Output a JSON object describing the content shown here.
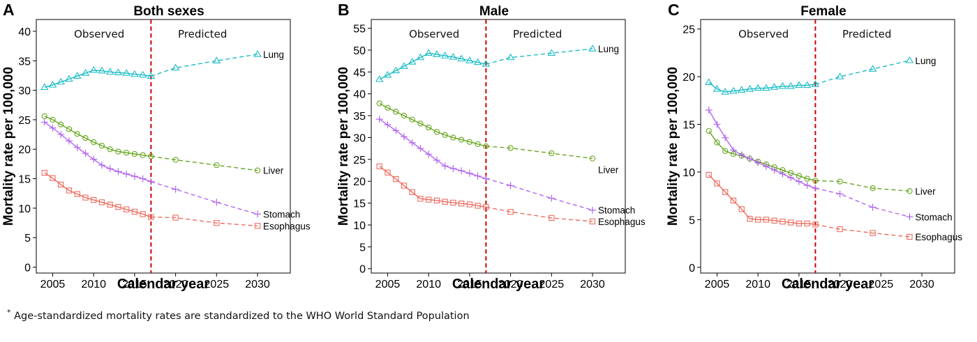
{
  "footnote": {
    "mark": "*",
    "text": " Age-standardized mortality rates are standardized to the WHO World Standard Population"
  },
  "colors": {
    "lung": "#1ABCC6",
    "liver": "#66A61E",
    "stomach": "#B366F2",
    "esophagus": "#EE6B5E",
    "divider": "#CC0000",
    "axis": "#000000"
  },
  "chart_data": [
    {
      "type": "line",
      "panel_letter": "A",
      "title": "Both sexes",
      "xlabel": "Calendar year",
      "ylabel": "Mortality rate per 100,000",
      "xlim": [
        2003,
        2034
      ],
      "ylim": [
        -1,
        42
      ],
      "xticks": [
        2005,
        2010,
        2015,
        2020,
        2025,
        2030
      ],
      "yticks": [
        0,
        5,
        10,
        15,
        20,
        25,
        30,
        35,
        40
      ],
      "divider_year": 2017,
      "region_labels": [
        "Observed",
        "Predicted"
      ],
      "grid": false,
      "series": [
        {
          "name": "Lung",
          "marker": "triangle",
          "color_key": "lung",
          "observed": {
            "x": [
              2004,
              2005,
              2006,
              2007,
              2008,
              2009,
              2010,
              2011,
              2012,
              2013,
              2014,
              2015,
              2016,
              2017
            ],
            "y": [
              30.5,
              30.9,
              31.4,
              31.9,
              32.4,
              32.9,
              33.4,
              33.3,
              33.1,
              33.0,
              32.9,
              32.7,
              32.6,
              32.4
            ]
          },
          "predicted": {
            "x": [
              2017,
              2020,
              2025,
              2030
            ],
            "y": [
              32.4,
              33.8,
              35.0,
              36.1
            ]
          }
        },
        {
          "name": "Liver",
          "marker": "circle",
          "color_key": "liver",
          "observed": {
            "x": [
              2004,
              2005,
              2006,
              2007,
              2008,
              2009,
              2010,
              2011,
              2012,
              2013,
              2014,
              2015,
              2016,
              2017
            ],
            "y": [
              25.6,
              25.0,
              24.2,
              23.4,
              22.6,
              21.9,
              21.2,
              20.6,
              20.0,
              19.6,
              19.4,
              19.2,
              19.0,
              18.8
            ]
          },
          "predicted": {
            "x": [
              2017,
              2020,
              2025,
              2030
            ],
            "y": [
              18.8,
              18.2,
              17.3,
              16.4
            ]
          }
        },
        {
          "name": "Stomach",
          "marker": "plus",
          "color_key": "stomach",
          "observed": {
            "x": [
              2004,
              2005,
              2006,
              2007,
              2008,
              2009,
              2010,
              2011,
              2012,
              2013,
              2014,
              2015,
              2016,
              2017
            ],
            "y": [
              24.6,
              23.6,
              22.5,
              21.4,
              20.3,
              19.3,
              18.3,
              17.3,
              16.7,
              16.2,
              15.8,
              15.4,
              15.0,
              14.5
            ]
          },
          "predicted": {
            "x": [
              2017,
              2020,
              2025,
              2030
            ],
            "y": [
              14.5,
              13.2,
              11.0,
              9.0
            ]
          }
        },
        {
          "name": "Esophagus",
          "marker": "square",
          "color_key": "esophagus",
          "observed": {
            "x": [
              2004,
              2005,
              2006,
              2007,
              2008,
              2009,
              2010,
              2011,
              2012,
              2013,
              2014,
              2015,
              2016,
              2017
            ],
            "y": [
              16.0,
              15.1,
              14.0,
              13.0,
              12.4,
              11.8,
              11.4,
              11.0,
              10.6,
              10.2,
              9.8,
              9.4,
              9.0,
              8.5
            ]
          },
          "predicted": {
            "x": [
              2017,
              2020,
              2025,
              2030
            ],
            "y": [
              8.5,
              8.4,
              7.5,
              7.0
            ]
          }
        }
      ]
    },
    {
      "type": "line",
      "panel_letter": "B",
      "title": "Male",
      "xlabel": "Calendar year",
      "ylabel": "Mortality rate per 100,000",
      "xlim": [
        2003,
        2034
      ],
      "ylim": [
        -1,
        57
      ],
      "xticks": [
        2005,
        2010,
        2015,
        2020,
        2025,
        2030
      ],
      "yticks": [
        0,
        5,
        10,
        15,
        20,
        25,
        30,
        35,
        40,
        45,
        50,
        55
      ],
      "divider_year": 2017,
      "region_labels": [
        "Observed",
        "Predicted"
      ],
      "grid": false,
      "series": [
        {
          "name": "Lung",
          "marker": "triangle",
          "color_key": "lung",
          "observed": {
            "x": [
              2004,
              2005,
              2006,
              2007,
              2008,
              2009,
              2010,
              2011,
              2012,
              2013,
              2014,
              2015,
              2016,
              2017
            ],
            "y": [
              43.3,
              44.3,
              45.3,
              46.3,
              47.3,
              48.3,
              49.3,
              49.0,
              48.7,
              48.4,
              48.0,
              47.6,
              47.2,
              46.8
            ]
          },
          "predicted": {
            "x": [
              2017,
              2020,
              2025,
              2030
            ],
            "y": [
              46.8,
              48.3,
              49.3,
              50.3
            ]
          }
        },
        {
          "name": "Liver",
          "marker": "circle",
          "color_key": "liver",
          "observed": {
            "x": [
              2004,
              2005,
              2006,
              2007,
              2008,
              2009,
              2010,
              2011,
              2012,
              2013,
              2014,
              2015,
              2016,
              2017
            ],
            "y": [
              37.8,
              36.8,
              35.9,
              35.0,
              34.1,
              33.2,
              32.3,
              31.3,
              30.6,
              30.0,
              29.5,
              29.0,
              28.5,
              28.0
            ]
          },
          "predicted": {
            "x": [
              2017,
              2020,
              2025,
              2030
            ],
            "y": [
              28.0,
              27.6,
              26.4,
              25.2
            ]
          }
        },
        {
          "name": "Stomach",
          "marker": "plus",
          "color_key": "stomach",
          "observed": {
            "x": [
              2004,
              2005,
              2006,
              2007,
              2008,
              2009,
              2010,
              2011,
              2012,
              2013,
              2014,
              2015,
              2016,
              2017
            ],
            "y": [
              34.2,
              32.9,
              31.6,
              30.2,
              28.8,
              27.5,
              26.2,
              24.8,
              23.5,
              22.9,
              22.4,
              21.8,
              21.2,
              20.6
            ]
          },
          "predicted": {
            "x": [
              2017,
              2020,
              2025,
              2030
            ],
            "y": [
              20.6,
              19.0,
              16.1,
              13.4
            ]
          }
        },
        {
          "name": "Esophagus",
          "marker": "square",
          "color_key": "esophagus",
          "observed": {
            "x": [
              2004,
              2005,
              2006,
              2007,
              2008,
              2009,
              2010,
              2011,
              2012,
              2013,
              2014,
              2015,
              2016,
              2017
            ],
            "y": [
              23.4,
              22.0,
              20.5,
              19.0,
              17.5,
              16.0,
              15.8,
              15.6,
              15.3,
              15.1,
              14.9,
              14.7,
              14.4,
              14.1
            ]
          },
          "predicted": {
            "x": [
              2017,
              2020,
              2025,
              2030
            ],
            "y": [
              14.1,
              13.0,
              11.6,
              10.8
            ]
          }
        }
      ]
    },
    {
      "type": "line",
      "panel_letter": "C",
      "title": "Female",
      "xlabel": "Calendar year",
      "ylabel": "Mortality rate per 100,000",
      "xlim": [
        2003,
        2034
      ],
      "ylim": [
        -0.6,
        26
      ],
      "xticks": [
        2005,
        2010,
        2015,
        2020,
        2025,
        2030
      ],
      "yticks": [
        0,
        5,
        10,
        15,
        20,
        25
      ],
      "divider_year": 2017,
      "region_labels": [
        "Observed",
        "Predicted"
      ],
      "grid": false,
      "series": [
        {
          "name": "Lung",
          "marker": "triangle",
          "color_key": "lung",
          "observed": {
            "x": [
              2004,
              2005,
              2006,
              2007,
              2008,
              2009,
              2010,
              2011,
              2012,
              2013,
              2014,
              2015,
              2016,
              2017
            ],
            "y": [
              19.4,
              18.7,
              18.4,
              18.5,
              18.6,
              18.7,
              18.8,
              18.8,
              18.9,
              19.0,
              19.0,
              19.1,
              19.1,
              19.2
            ]
          },
          "predicted": {
            "x": [
              2017,
              2020,
              2024,
              2028.5
            ],
            "y": [
              19.2,
              20.0,
              20.8,
              21.7
            ]
          }
        },
        {
          "name": "Liver",
          "marker": "circle",
          "color_key": "liver",
          "observed": {
            "x": [
              2004,
              2005,
              2006,
              2007,
              2008,
              2009,
              2010,
              2011,
              2012,
              2013,
              2014,
              2015,
              2016,
              2017
            ],
            "y": [
              14.3,
              13.1,
              12.2,
              11.9,
              11.7,
              11.4,
              11.1,
              10.8,
              10.5,
              10.2,
              9.9,
              9.6,
              9.3,
              9.1
            ]
          },
          "predicted": {
            "x": [
              2017,
              2020,
              2024,
              2028.5
            ],
            "y": [
              9.1,
              9.0,
              8.3,
              8.0
            ]
          }
        },
        {
          "name": "Stomach",
          "marker": "plus",
          "color_key": "stomach",
          "observed": {
            "x": [
              2004,
              2005,
              2006,
              2007,
              2008,
              2009,
              2010,
              2011,
              2012,
              2013,
              2014,
              2015,
              2016,
              2017
            ],
            "y": [
              16.5,
              15.0,
              13.6,
              12.3,
              11.8,
              11.4,
              11.0,
              10.6,
              10.2,
              9.8,
              9.4,
              9.0,
              8.6,
              8.3
            ]
          },
          "predicted": {
            "x": [
              2017,
              2020,
              2024,
              2028.5
            ],
            "y": [
              8.3,
              7.7,
              6.3,
              5.3
            ]
          }
        },
        {
          "name": "Esophagus",
          "marker": "square",
          "color_key": "esophagus",
          "observed": {
            "x": [
              2004,
              2005,
              2006,
              2007,
              2008,
              2009,
              2010,
              2011,
              2012,
              2013,
              2014,
              2015,
              2016,
              2017
            ],
            "y": [
              9.7,
              8.8,
              7.9,
              7.0,
              6.1,
              5.1,
              5.0,
              5.0,
              4.9,
              4.8,
              4.7,
              4.6,
              4.6,
              4.5
            ]
          },
          "predicted": {
            "x": [
              2017,
              2020,
              2024,
              2028.5
            ],
            "y": [
              4.5,
              4.0,
              3.6,
              3.2
            ]
          }
        }
      ]
    }
  ]
}
